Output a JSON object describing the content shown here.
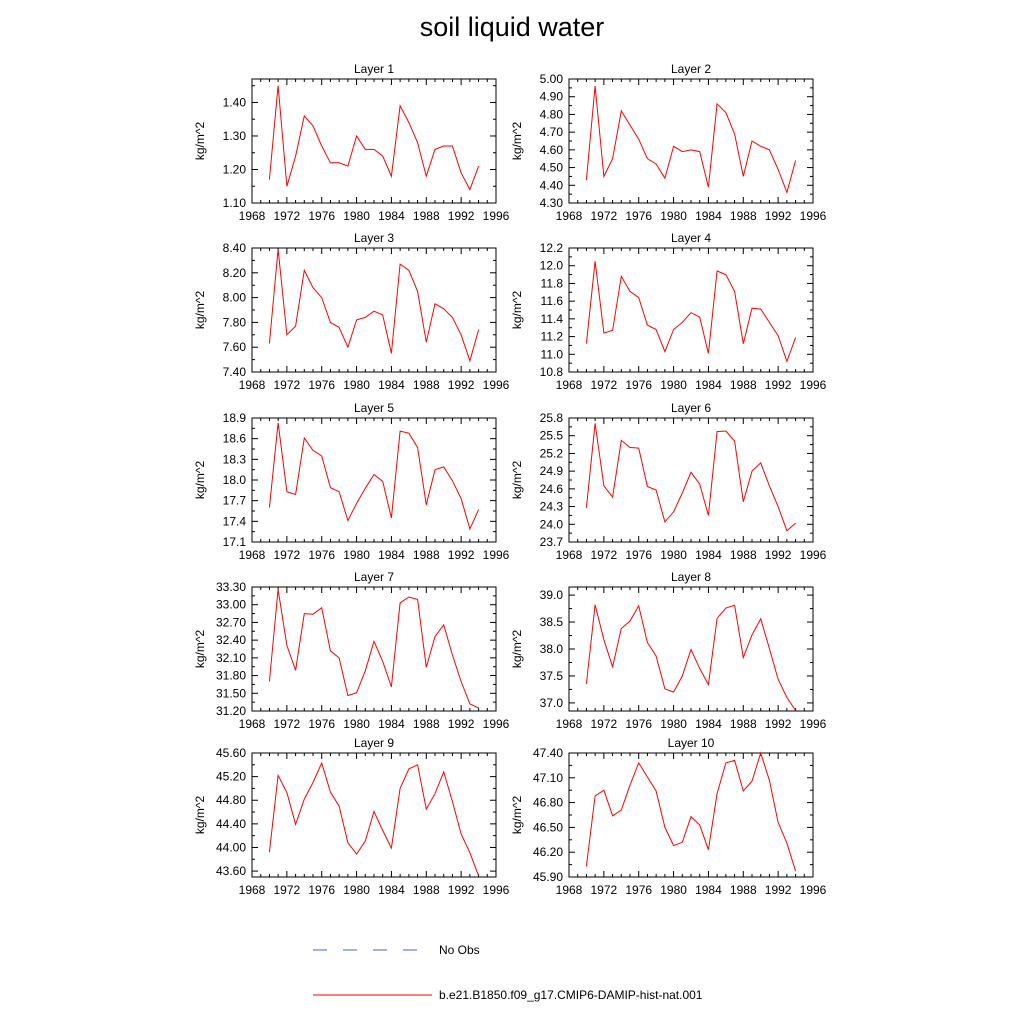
{
  "title": "soil liquid water",
  "chart_data": [
    {
      "type": "line",
      "title": "Layer 1",
      "ylabel": "kg/m^2",
      "xlim": [
        1968,
        1996
      ],
      "ylim": [
        1.1,
        1.47
      ],
      "xticks": [
        "1968",
        "1972",
        "1976",
        "1980",
        "1984",
        "1988",
        "1992",
        "1996"
      ],
      "yticks": [
        "1.10",
        "1.20",
        "1.30",
        "1.40"
      ],
      "series": [
        {
          "color": "#ff0000",
          "x": [
            1970,
            1971,
            1972,
            1973,
            1974,
            1975,
            1976,
            1977,
            1978,
            1979,
            1980,
            1981,
            1982,
            1983,
            1984,
            1985,
            1986,
            1987,
            1988,
            1989,
            1990,
            1991,
            1992,
            1993,
            1994
          ],
          "values": [
            1.17,
            1.45,
            1.15,
            1.24,
            1.36,
            1.33,
            1.27,
            1.22,
            1.22,
            1.21,
            1.3,
            1.26,
            1.26,
            1.24,
            1.18,
            1.39,
            1.34,
            1.28,
            1.18,
            1.26,
            1.27,
            1.27,
            1.19,
            1.14,
            1.21
          ]
        }
      ]
    },
    {
      "type": "line",
      "title": "Layer 2",
      "ylabel": "kg/m^2",
      "xlim": [
        1968,
        1996
      ],
      "ylim": [
        4.3,
        5.0
      ],
      "xticks": [
        "1968",
        "1972",
        "1976",
        "1980",
        "1984",
        "1988",
        "1992",
        "1996"
      ],
      "yticks": [
        "4.30",
        "4.40",
        "4.50",
        "4.60",
        "4.70",
        "4.80",
        "4.90",
        "5.00"
      ],
      "series": [
        {
          "color": "#ff0000",
          "x": [
            1970,
            1971,
            1972,
            1973,
            1974,
            1975,
            1976,
            1977,
            1978,
            1979,
            1980,
            1981,
            1982,
            1983,
            1984,
            1985,
            1986,
            1987,
            1988,
            1989,
            1990,
            1991,
            1992,
            1993,
            1994
          ],
          "values": [
            4.43,
            4.96,
            4.45,
            4.55,
            4.82,
            4.74,
            4.66,
            4.55,
            4.52,
            4.44,
            4.62,
            4.59,
            4.6,
            4.59,
            4.39,
            4.86,
            4.81,
            4.69,
            4.45,
            4.65,
            4.62,
            4.6,
            4.49,
            4.36,
            4.54
          ]
        }
      ]
    },
    {
      "type": "line",
      "title": "Layer 3",
      "ylabel": "kg/m^2",
      "xlim": [
        1968,
        1996
      ],
      "ylim": [
        7.4,
        8.4
      ],
      "xticks": [
        "1968",
        "1972",
        "1976",
        "1980",
        "1984",
        "1988",
        "1992",
        "1996"
      ],
      "yticks": [
        "7.40",
        "7.60",
        "7.80",
        "8.00",
        "8.20",
        "8.40"
      ],
      "series": [
        {
          "color": "#ff0000",
          "x": [
            1970,
            1971,
            1972,
            1973,
            1974,
            1975,
            1976,
            1977,
            1978,
            1979,
            1980,
            1981,
            1982,
            1983,
            1984,
            1985,
            1986,
            1987,
            1988,
            1989,
            1990,
            1991,
            1992,
            1993,
            1994
          ],
          "values": [
            7.63,
            8.39,
            7.7,
            7.77,
            8.22,
            8.08,
            8.0,
            7.8,
            7.76,
            7.6,
            7.82,
            7.84,
            7.89,
            7.86,
            7.55,
            8.27,
            8.22,
            8.05,
            7.64,
            7.95,
            7.91,
            7.84,
            7.7,
            7.49,
            7.74
          ]
        }
      ]
    },
    {
      "type": "line",
      "title": "Layer 4",
      "ylabel": "kg/m^2",
      "xlim": [
        1968,
        1996
      ],
      "ylim": [
        10.8,
        12.2
      ],
      "xticks": [
        "1968",
        "1972",
        "1976",
        "1980",
        "1984",
        "1988",
        "1992",
        "1996"
      ],
      "yticks": [
        "10.8",
        "11.0",
        "11.2",
        "11.4",
        "11.6",
        "11.8",
        "12.0",
        "12.2"
      ],
      "series": [
        {
          "color": "#ff0000",
          "x": [
            1970,
            1971,
            1972,
            1973,
            1974,
            1975,
            1976,
            1977,
            1978,
            1979,
            1980,
            1981,
            1982,
            1983,
            1984,
            1985,
            1986,
            1987,
            1988,
            1989,
            1990,
            1991,
            1992,
            1993,
            1994
          ],
          "values": [
            11.12,
            12.05,
            11.24,
            11.27,
            11.88,
            11.71,
            11.64,
            11.33,
            11.28,
            11.03,
            11.28,
            11.36,
            11.47,
            11.42,
            11.01,
            11.94,
            11.9,
            11.71,
            11.12,
            11.52,
            11.51,
            11.36,
            11.21,
            10.92,
            11.19
          ]
        }
      ]
    },
    {
      "type": "line",
      "title": "Layer 5",
      "ylabel": "kg/m^2",
      "xlim": [
        1968,
        1996
      ],
      "ylim": [
        17.1,
        18.9
      ],
      "xticks": [
        "1968",
        "1972",
        "1976",
        "1980",
        "1984",
        "1988",
        "1992",
        "1996"
      ],
      "yticks": [
        "17.1",
        "17.4",
        "17.7",
        "18.0",
        "18.3",
        "18.6",
        "18.9"
      ],
      "series": [
        {
          "color": "#ff0000",
          "x": [
            1970,
            1971,
            1972,
            1973,
            1974,
            1975,
            1976,
            1977,
            1978,
            1979,
            1980,
            1981,
            1982,
            1983,
            1984,
            1985,
            1986,
            1987,
            1988,
            1989,
            1990,
            1991,
            1992,
            1993,
            1994
          ],
          "values": [
            17.6,
            18.83,
            17.83,
            17.79,
            18.61,
            18.43,
            18.35,
            17.89,
            17.83,
            17.41,
            17.66,
            17.88,
            18.08,
            17.98,
            17.45,
            18.71,
            18.68,
            18.47,
            17.64,
            18.15,
            18.19,
            17.99,
            17.73,
            17.29,
            17.57
          ]
        }
      ]
    },
    {
      "type": "line",
      "title": "Layer 6",
      "ylabel": "kg/m^2",
      "xlim": [
        1968,
        1996
      ],
      "ylim": [
        23.7,
        25.8
      ],
      "xticks": [
        "1968",
        "1972",
        "1976",
        "1980",
        "1984",
        "1988",
        "1992",
        "1996"
      ],
      "yticks": [
        "23.7",
        "24.0",
        "24.3",
        "24.6",
        "24.9",
        "25.2",
        "25.5",
        "25.8"
      ],
      "series": [
        {
          "color": "#ff0000",
          "x": [
            1970,
            1971,
            1972,
            1973,
            1974,
            1975,
            1976,
            1977,
            1978,
            1979,
            1980,
            1981,
            1982,
            1983,
            1984,
            1985,
            1986,
            1987,
            1988,
            1989,
            1990,
            1991,
            1992,
            1993,
            1994
          ],
          "values": [
            24.28,
            25.71,
            24.65,
            24.46,
            25.42,
            25.3,
            25.29,
            24.64,
            24.58,
            24.04,
            24.21,
            24.53,
            24.88,
            24.68,
            24.15,
            25.57,
            25.58,
            25.41,
            24.38,
            24.9,
            25.04,
            24.65,
            24.3,
            23.89,
            24.02
          ]
        }
      ]
    },
    {
      "type": "line",
      "title": "Layer 7",
      "ylabel": "kg/m^2",
      "xlim": [
        1968,
        1996
      ],
      "ylim": [
        31.2,
        33.3
      ],
      "xticks": [
        "1968",
        "1972",
        "1976",
        "1980",
        "1984",
        "1988",
        "1992",
        "1996"
      ],
      "yticks": [
        "31.20",
        "31.50",
        "31.80",
        "32.10",
        "32.40",
        "32.70",
        "33.00",
        "33.30"
      ],
      "series": [
        {
          "color": "#ff0000",
          "x": [
            1970,
            1971,
            1972,
            1973,
            1974,
            1975,
            1976,
            1977,
            1978,
            1979,
            1980,
            1981,
            1982,
            1983,
            1984,
            1985,
            1986,
            1987,
            1988,
            1989,
            1990,
            1991,
            1992,
            1993,
            1994
          ],
          "values": [
            31.7,
            33.26,
            32.31,
            31.89,
            32.85,
            32.84,
            32.95,
            32.22,
            32.1,
            31.46,
            31.51,
            31.88,
            32.38,
            32.04,
            31.61,
            33.03,
            33.13,
            33.09,
            31.94,
            32.46,
            32.66,
            32.15,
            31.7,
            31.32,
            31.25
          ]
        }
      ]
    },
    {
      "type": "line",
      "title": "Layer 8",
      "ylabel": "kg/m^2",
      "xlim": [
        1968,
        1996
      ],
      "ylim": [
        36.85,
        39.15
      ],
      "xticks": [
        "1968",
        "1972",
        "1976",
        "1980",
        "1984",
        "1988",
        "1992",
        "1996"
      ],
      "yticks": [
        "37.0",
        "37.5",
        "38.0",
        "38.5",
        "39.0"
      ],
      "series": [
        {
          "color": "#ff0000",
          "x": [
            1970,
            1971,
            1972,
            1973,
            1974,
            1975,
            1976,
            1977,
            1978,
            1979,
            1980,
            1981,
            1982,
            1983,
            1984,
            1985,
            1986,
            1987,
            1988,
            1989,
            1990,
            1991,
            1992,
            1993,
            1994
          ],
          "values": [
            37.35,
            38.82,
            38.17,
            37.67,
            38.38,
            38.52,
            38.8,
            38.12,
            37.87,
            37.26,
            37.2,
            37.5,
            37.99,
            37.64,
            37.34,
            38.57,
            38.76,
            38.81,
            37.84,
            38.26,
            38.56,
            38.01,
            37.44,
            37.1,
            36.86
          ]
        }
      ]
    },
    {
      "type": "line",
      "title": "Layer 9",
      "ylabel": "kg/m^2",
      "xlim": [
        1968,
        1996
      ],
      "ylim": [
        43.5,
        45.6
      ],
      "xticks": [
        "1968",
        "1972",
        "1976",
        "1980",
        "1984",
        "1988",
        "1992",
        "1996"
      ],
      "yticks": [
        "43.60",
        "44.00",
        "44.40",
        "44.80",
        "45.20",
        "45.60"
      ],
      "series": [
        {
          "color": "#ff0000",
          "x": [
            1970,
            1971,
            1972,
            1973,
            1974,
            1975,
            1976,
            1977,
            1978,
            1979,
            1980,
            1981,
            1982,
            1983,
            1984,
            1985,
            1986,
            1987,
            1988,
            1989,
            1990,
            1991,
            1992,
            1993,
            1994
          ],
          "values": [
            43.92,
            45.22,
            44.93,
            44.39,
            44.82,
            45.1,
            45.43,
            44.94,
            44.7,
            44.08,
            43.89,
            44.11,
            44.61,
            44.29,
            43.99,
            45.0,
            45.33,
            45.4,
            44.65,
            44.91,
            45.28,
            44.78,
            44.23,
            43.91,
            43.52
          ]
        }
      ]
    },
    {
      "type": "line",
      "title": "Layer 10",
      "ylabel": "kg/m^2",
      "xlim": [
        1968,
        1996
      ],
      "ylim": [
        45.9,
        47.4
      ],
      "xticks": [
        "1968",
        "1972",
        "1976",
        "1980",
        "1984",
        "1988",
        "1992",
        "1996"
      ],
      "yticks": [
        "45.90",
        "46.20",
        "46.50",
        "46.80",
        "47.10",
        "47.40"
      ],
      "series": [
        {
          "color": "#ff0000",
          "x": [
            1970,
            1971,
            1972,
            1973,
            1974,
            1975,
            1976,
            1977,
            1978,
            1979,
            1980,
            1981,
            1982,
            1983,
            1984,
            1985,
            1986,
            1987,
            1988,
            1989,
            1990,
            1991,
            1992,
            1993,
            1994
          ],
          "values": [
            46.03,
            46.88,
            46.95,
            46.64,
            46.71,
            47.01,
            47.28,
            47.11,
            46.94,
            46.5,
            46.28,
            46.32,
            46.63,
            46.53,
            46.23,
            46.91,
            47.28,
            47.31,
            46.94,
            47.06,
            47.4,
            47.07,
            46.56,
            46.31,
            45.97
          ]
        }
      ]
    }
  ],
  "legend": {
    "items": [
      {
        "label": "No Obs",
        "color": "#4a5fd0",
        "style": "dashed"
      },
      {
        "label": "b.e21.B1850.f09_g17.CMIP6-DAMIP-hist-nat.001",
        "color": "#ff0000",
        "style": "solid"
      }
    ]
  }
}
